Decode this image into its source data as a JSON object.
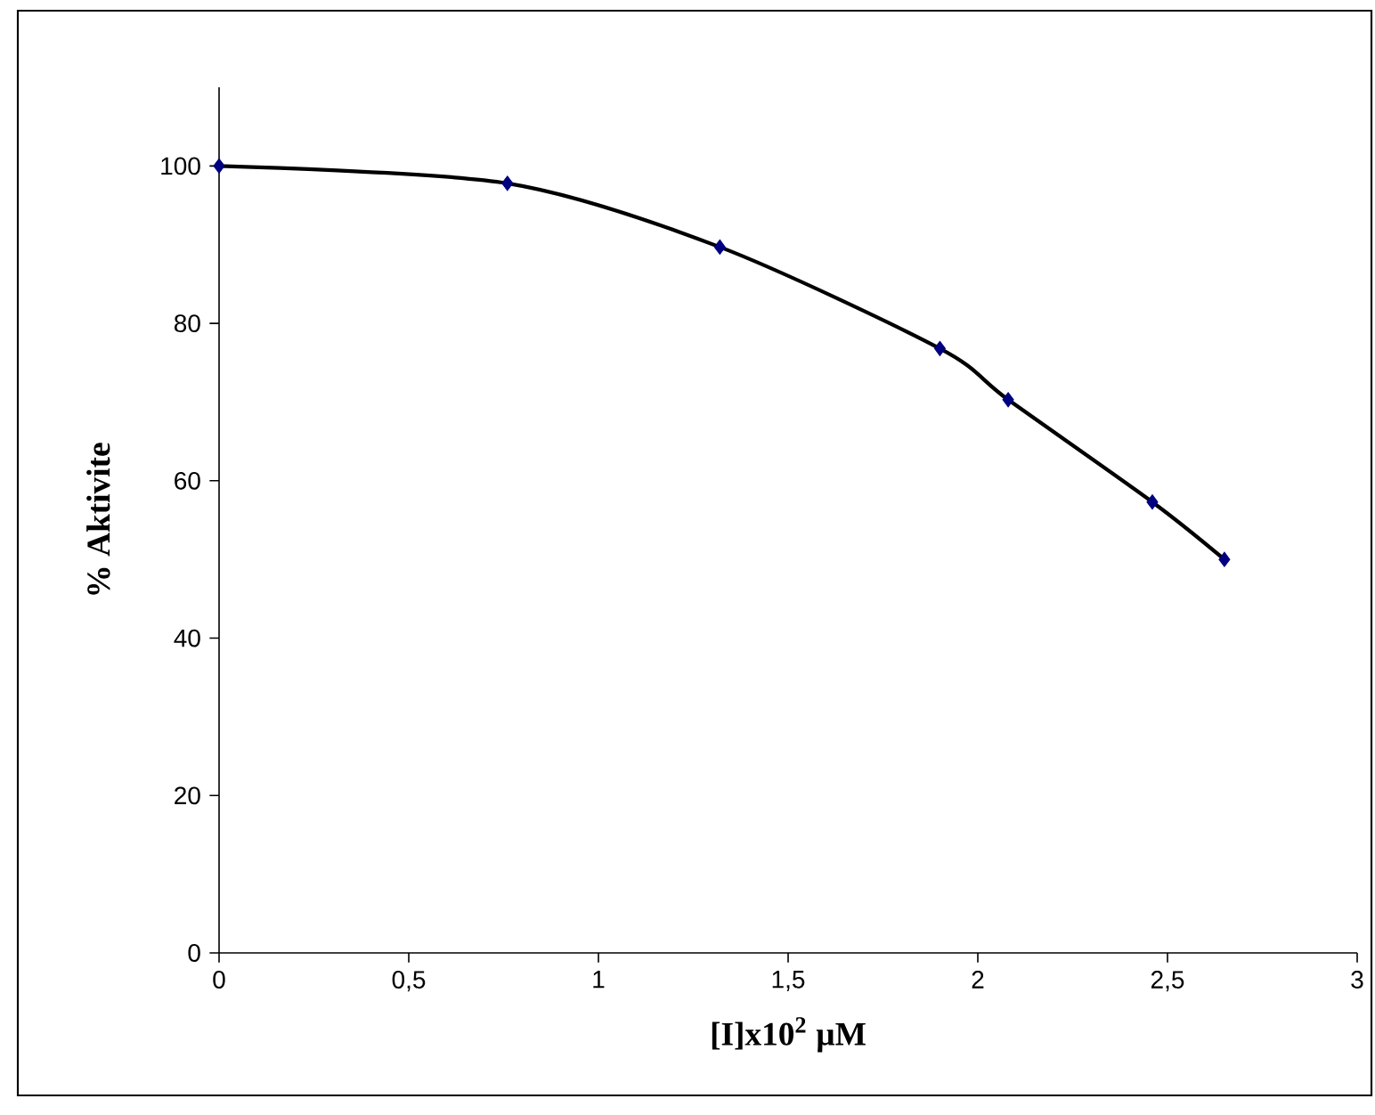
{
  "chart_data": {
    "type": "line",
    "xlabel": "[I]x10$^{2}$ µM",
    "ylabel": "% Aktivite",
    "x": [
      0,
      0.76,
      1.32,
      1.9,
      2.08,
      2.46,
      2.65
    ],
    "series": [
      {
        "color": "#000000",
        "marker": "none",
        "values": [
          100,
          97.8,
          89.7,
          76.8,
          70.3,
          57.3,
          50.0
        ]
      },
      {
        "type": "scatter",
        "color": "#000080",
        "marker": "diamond",
        "values": [
          100,
          97.8,
          89.7,
          76.8,
          70.3,
          57.3,
          50.0
        ]
      }
    ],
    "xlim": [
      0,
      3
    ],
    "ylim": [
      0,
      110
    ],
    "xticks": [
      0,
      {
        "value": 0.5,
        "label": "0,5"
      },
      1,
      {
        "value": 1.5,
        "label": "1,5"
      },
      2,
      {
        "value": 2.5,
        "label": "2,5"
      },
      3
    ],
    "yticks": [
      0,
      20,
      40,
      60,
      80,
      100
    ]
  }
}
